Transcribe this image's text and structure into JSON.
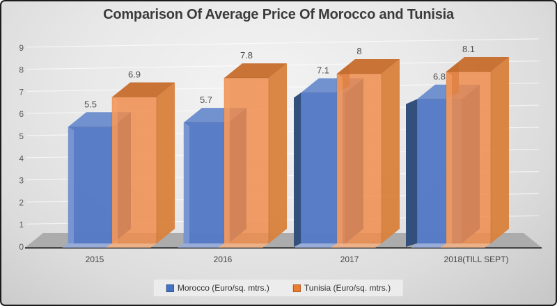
{
  "title": "Comparison Of Average Price Of Morocco and Tunisia",
  "chart_data": {
    "type": "bar",
    "style": "3d-clustered-column",
    "categories": [
      "2015",
      "2016",
      "2017",
      "2018(TILL SEPT)"
    ],
    "series": [
      {
        "name": "Morocco (Euro/sq. mtrs.)",
        "values": [
          5.5,
          5.7,
          7.1,
          6.8
        ],
        "labels": [
          "5.5",
          "5.7",
          "7.1",
          "6.8"
        ]
      },
      {
        "name": "Tunisia (Euro/sq. mtrs.)",
        "values": [
          6.9,
          7.8,
          8,
          8.1
        ],
        "labels": [
          "6.9",
          "7.8",
          "8",
          "8.1"
        ]
      }
    ],
    "xlabel": "",
    "ylabel": "",
    "ylim": [
      0,
      9
    ],
    "yticks": [
      0,
      1,
      2,
      3,
      4,
      5,
      6,
      7,
      8,
      9
    ],
    "grid": true,
    "legend_position": "bottom",
    "data_labels": true
  },
  "colors": {
    "morocco_front": "#5579C5",
    "morocco_top": "#7291CF",
    "morocco_side": "#3A5C9E",
    "morocco_bevel_light": "#7E99D2",
    "morocco_bevel_dark": "#33507D",
    "morocco_foot": "#96ACDD",
    "morocco_swatch": "#4472C4",
    "tunisia_front": "#F08C4B",
    "tunisia_top": "#C76E30",
    "tunisia_side": "#D8813D",
    "tunisia_bevel_light": "#F5A269",
    "tunisia_overlap_brown": "#8B5530",
    "tunisia_foot": "#F4B183",
    "tunisia_swatch": "#ED7D31",
    "floor": "#ACACAC",
    "axis_line": "#4A4A4A",
    "gridline": "#FFFFFF",
    "tick_color": "#595959",
    "data_label_color": "#4D4D4D",
    "category_label_color": "#444444",
    "title_color": "#3B3B3B"
  }
}
